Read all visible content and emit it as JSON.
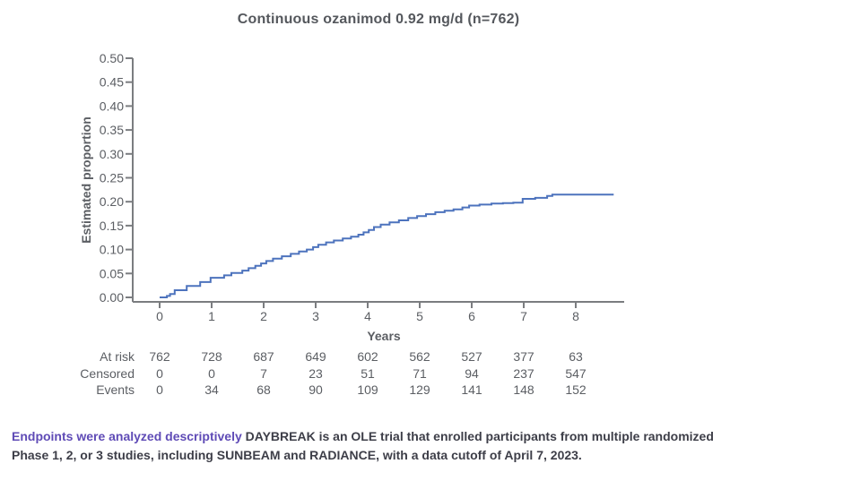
{
  "colors": {
    "curve": "#4d73bd",
    "accent_text": "#5f4bb6",
    "chart_text": "#5b5e63",
    "axis_line": "#7b7d80",
    "title_text": "#55585d",
    "footnote_text": "#3d3e48"
  },
  "chart_data": {
    "type": "line",
    "subtype": "kaplan-meier-step",
    "title": "Continuous ozanimod 0.92 mg/d (n=762)",
    "xlabel": "Years",
    "ylabel": "Estimated proportion",
    "xlim": [
      0,
      8.93
    ],
    "ylim": [
      0,
      0.5
    ],
    "grid": false,
    "legend": "none",
    "x_axis": {
      "ticks": [
        "0",
        "1",
        "2",
        "3",
        "4",
        "5",
        "6",
        "7",
        "8"
      ]
    },
    "y_axis": {
      "ticks": [
        "0.00",
        "0.05",
        "0.10",
        "0.15",
        "0.20",
        "0.25",
        "0.30",
        "0.35",
        "0.40",
        "0.45",
        "0.50"
      ],
      "min": 0,
      "step": 0.05
    },
    "series": [
      {
        "name": "Continuous ozanimod 0.92 mg/d (n=762)",
        "step": true,
        "points": [
          [
            0.0,
            0.0
          ],
          [
            0.14,
            0.003
          ],
          [
            0.2,
            0.007
          ],
          [
            0.29,
            0.015
          ],
          [
            0.52,
            0.024
          ],
          [
            0.78,
            0.032
          ],
          [
            0.98,
            0.041
          ],
          [
            1.24,
            0.046
          ],
          [
            1.38,
            0.051
          ],
          [
            1.59,
            0.056
          ],
          [
            1.71,
            0.061
          ],
          [
            1.84,
            0.066
          ],
          [
            1.95,
            0.071
          ],
          [
            2.05,
            0.076
          ],
          [
            2.18,
            0.081
          ],
          [
            2.35,
            0.086
          ],
          [
            2.52,
            0.091
          ],
          [
            2.68,
            0.096
          ],
          [
            2.83,
            0.1
          ],
          [
            2.95,
            0.105
          ],
          [
            3.05,
            0.11
          ],
          [
            3.2,
            0.115
          ],
          [
            3.35,
            0.119
          ],
          [
            3.52,
            0.123
          ],
          [
            3.68,
            0.127
          ],
          [
            3.82,
            0.131
          ],
          [
            3.92,
            0.136
          ],
          [
            4.02,
            0.141
          ],
          [
            4.12,
            0.147
          ],
          [
            4.25,
            0.152
          ],
          [
            4.42,
            0.157
          ],
          [
            4.6,
            0.161
          ],
          [
            4.78,
            0.166
          ],
          [
            4.95,
            0.17
          ],
          [
            5.12,
            0.174
          ],
          [
            5.3,
            0.178
          ],
          [
            5.48,
            0.181
          ],
          [
            5.65,
            0.184
          ],
          [
            5.82,
            0.188
          ],
          [
            5.95,
            0.192
          ],
          [
            6.15,
            0.194
          ],
          [
            6.38,
            0.196
          ],
          [
            6.6,
            0.197
          ],
          [
            6.8,
            0.198
          ],
          [
            6.98,
            0.206
          ],
          [
            7.22,
            0.208
          ],
          [
            7.45,
            0.212
          ],
          [
            7.55,
            0.215
          ],
          [
            8.73,
            0.215
          ]
        ]
      }
    ]
  },
  "risk_table": {
    "rows": [
      {
        "label": "At risk",
        "values": [
          "762",
          "728",
          "687",
          "649",
          "602",
          "562",
          "527",
          "377",
          "63"
        ]
      },
      {
        "label": "Censored",
        "values": [
          "0",
          "0",
          "7",
          "23",
          "51",
          "71",
          "94",
          "237",
          "547"
        ]
      },
      {
        "label": "Events",
        "values": [
          "0",
          "34",
          "68",
          "90",
          "109",
          "129",
          "141",
          "148",
          "152"
        ]
      }
    ]
  },
  "footnote": {
    "highlight": "Endpoints were analyzed descriptively",
    "text": "DAYBREAK is an OLE trial that enrolled participants from multiple randomized Phase 1, 2, or 3 studies, including SUNBEAM and RADIANCE, with a data cutoff of April 7, 2023."
  }
}
